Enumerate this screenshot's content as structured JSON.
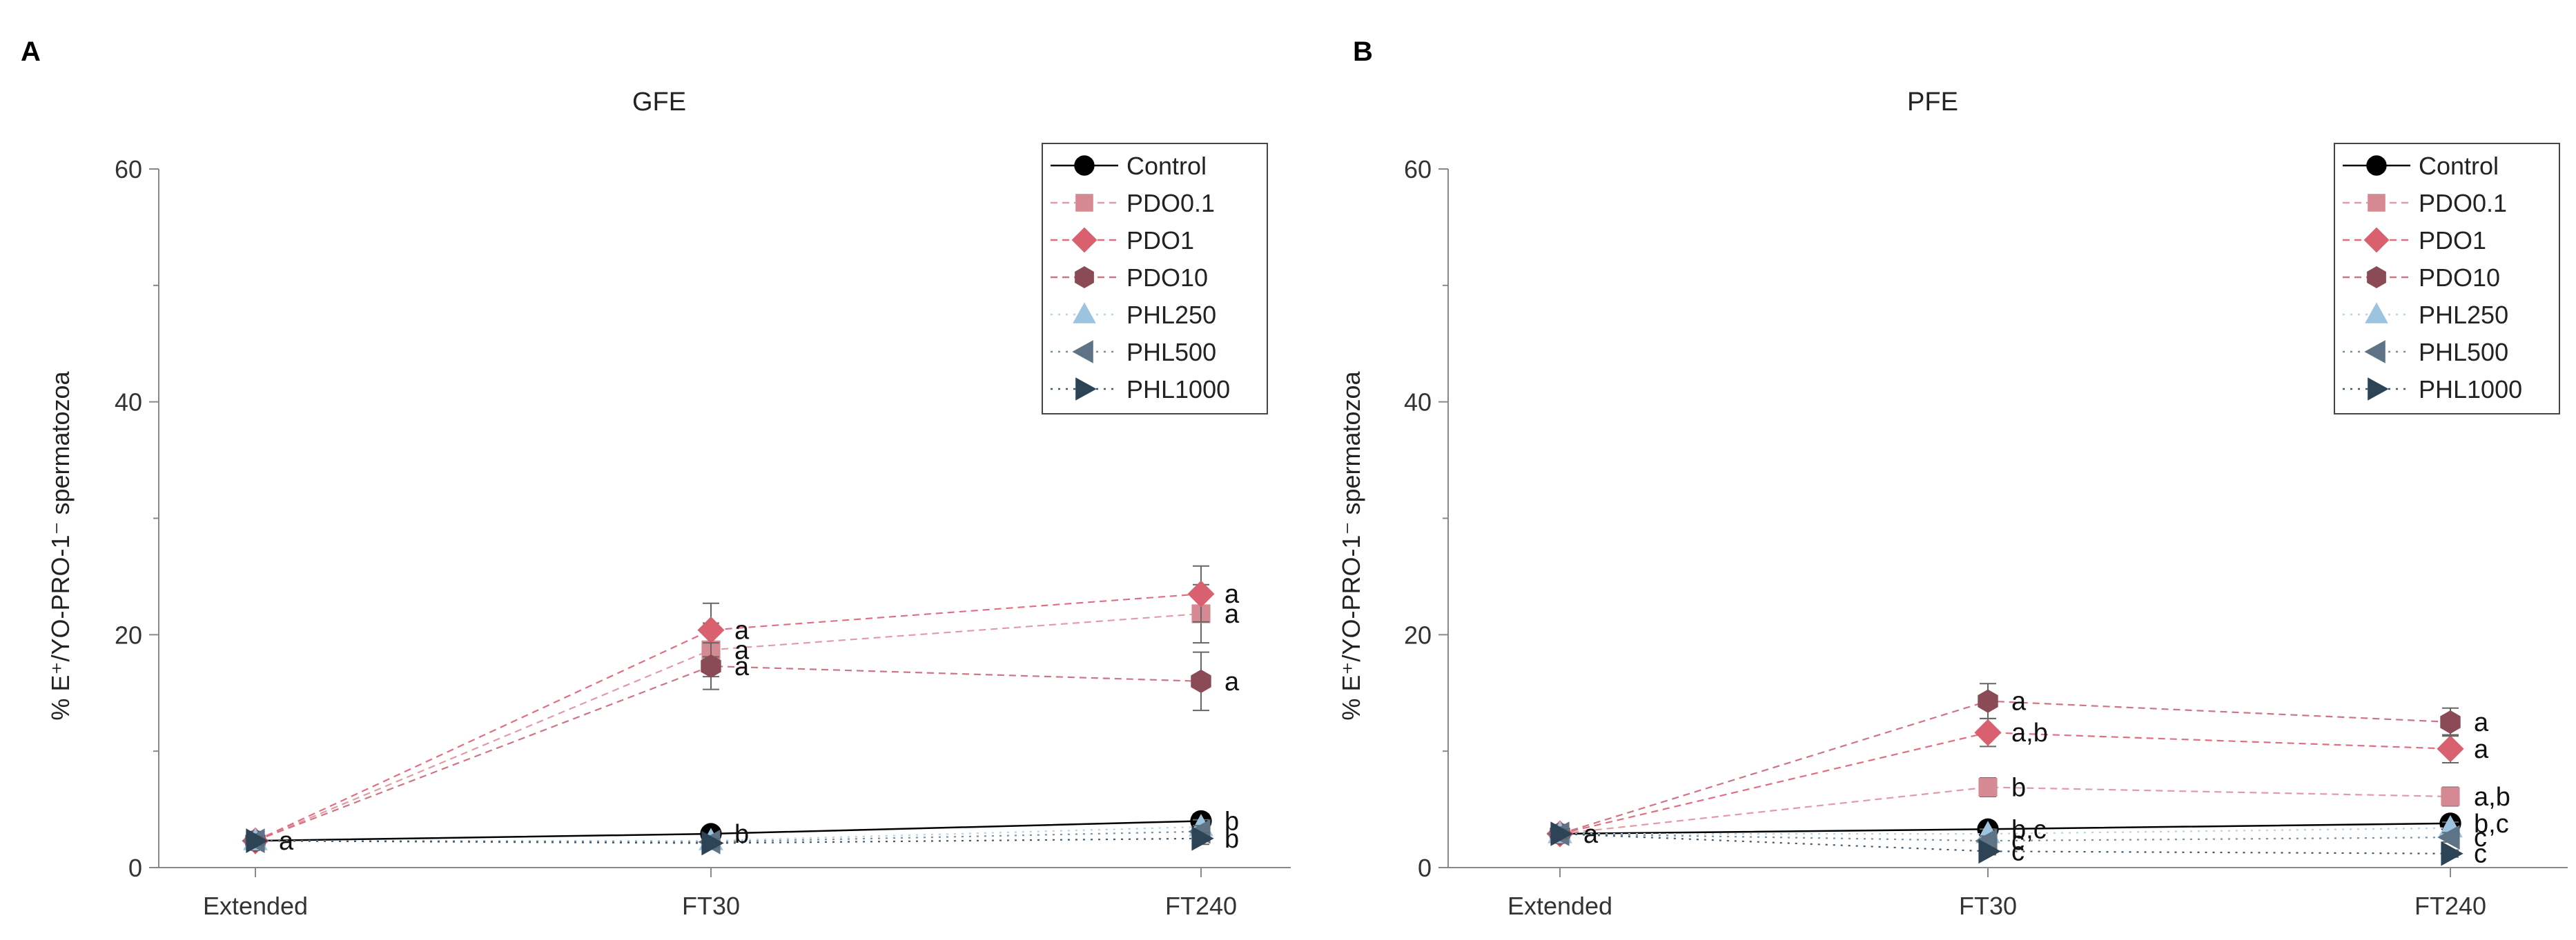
{
  "chart_data": [
    {
      "type": "line",
      "panel_label": "A",
      "title": "GFE",
      "xlabel": "",
      "ylabel": "% E⁺/YO-PRO-1⁻ spermatozoa",
      "categories": [
        "Extended",
        "FT30",
        "FT240"
      ],
      "ylim": [
        0,
        60
      ],
      "yticks": [
        "0",
        "20",
        "40",
        "60"
      ],
      "grid": false,
      "legend": "top-right",
      "series": [
        {
          "name": "Control",
          "values": [
            2.3,
            2.9,
            4.0
          ],
          "errors": [
            0.4,
            0.5,
            0.6
          ],
          "marker": "circle",
          "color": "#000000",
          "line_color": "#000000",
          "dash": "solid",
          "labels": [
            "",
            "b",
            "b"
          ]
        },
        {
          "name": "PDO0.1",
          "values": [
            2.3,
            18.7,
            21.8
          ],
          "errors": [
            0.4,
            2.3,
            2.5
          ],
          "marker": "square",
          "color": "#d58a93",
          "line_color": "#e29aa5",
          "dash": "dash",
          "labels": [
            "",
            "a",
            "a"
          ]
        },
        {
          "name": "PDO1",
          "values": [
            2.3,
            20.4,
            23.5
          ],
          "errors": [
            0.4,
            2.3,
            2.4
          ],
          "marker": "diamond",
          "color": "#d9616f",
          "line_color": "#e36d80",
          "dash": "dash",
          "labels": [
            "",
            "a",
            "a"
          ]
        },
        {
          "name": "PDO10",
          "values": [
            2.3,
            17.3,
            16.0
          ],
          "errors": [
            0.4,
            2.0,
            2.5
          ],
          "marker": "hexagon",
          "color": "#8a4a56",
          "line_color": "#cf7481",
          "dash": "dash",
          "labels": [
            "a",
            "a",
            "a"
          ]
        },
        {
          "name": "PHL250",
          "values": [
            2.3,
            2.3,
            3.5
          ],
          "errors": [
            0.4,
            0.5,
            0.6
          ],
          "marker": "triangle-up",
          "color": "#9dc4df",
          "line_color": "#b7d4e8",
          "dash": "dot",
          "labels": [
            "",
            "",
            ""
          ]
        },
        {
          "name": "PHL500",
          "values": [
            2.3,
            2.2,
            3.1
          ],
          "errors": [
            0.4,
            0.5,
            0.5
          ],
          "marker": "triangle-left",
          "color": "#5e7386",
          "line_color": "#7c8fa0",
          "dash": "dot",
          "labels": [
            "",
            "",
            ""
          ]
        },
        {
          "name": "PHL1000",
          "values": [
            2.3,
            2.1,
            2.5
          ],
          "errors": [
            0.4,
            0.4,
            0.5
          ],
          "marker": "triangle-right",
          "color": "#2d4356",
          "line_color": "#3f5a70",
          "dash": "dot",
          "labels": [
            "",
            "",
            "b"
          ]
        }
      ]
    },
    {
      "type": "line",
      "panel_label": "B",
      "title": "PFE",
      "xlabel": "",
      "ylabel": "% E⁺/YO-PRO-1⁻ spermatozoa",
      "categories": [
        "Extended",
        "FT30",
        "FT240"
      ],
      "ylim": [
        0,
        60
      ],
      "yticks": [
        "0",
        "20",
        "40",
        "60"
      ],
      "grid": false,
      "legend": "top-right",
      "series": [
        {
          "name": "Control",
          "values": [
            2.9,
            3.3,
            3.8
          ],
          "errors": [
            0.4,
            0.5,
            0.5
          ],
          "marker": "circle",
          "color": "#000000",
          "line_color": "#000000",
          "dash": "solid",
          "labels": [
            "",
            "b,c",
            "b,c"
          ]
        },
        {
          "name": "PDO0.1",
          "values": [
            2.9,
            6.9,
            6.1
          ],
          "errors": [
            0.4,
            0.8,
            0.8
          ],
          "marker": "square",
          "color": "#d58a93",
          "line_color": "#e29aa5",
          "dash": "dash",
          "labels": [
            "",
            "b",
            "a,b"
          ]
        },
        {
          "name": "PDO1",
          "values": [
            2.9,
            11.6,
            10.2
          ],
          "errors": [
            0.4,
            1.2,
            1.2
          ],
          "marker": "diamond",
          "color": "#d9616f",
          "line_color": "#e36d80",
          "dash": "dash",
          "labels": [
            "",
            "a,b",
            "a"
          ]
        },
        {
          "name": "PDO10",
          "values": [
            2.9,
            14.3,
            12.5
          ],
          "errors": [
            0.4,
            1.5,
            1.2
          ],
          "marker": "hexagon",
          "color": "#8a4a56",
          "line_color": "#cf7481",
          "dash": "dash",
          "labels": [
            "a",
            "a",
            "a"
          ]
        },
        {
          "name": "PHL250",
          "values": [
            2.9,
            2.9,
            3.4
          ],
          "errors": [
            0.4,
            0.4,
            0.5
          ],
          "marker": "triangle-up",
          "color": "#9dc4df",
          "line_color": "#b7d4e8",
          "dash": "dot",
          "labels": [
            "",
            "",
            ""
          ]
        },
        {
          "name": "PHL500",
          "values": [
            2.9,
            2.3,
            2.6
          ],
          "errors": [
            0.4,
            0.4,
            0.4
          ],
          "marker": "triangle-left",
          "color": "#5e7386",
          "line_color": "#7c8fa0",
          "dash": "dot",
          "labels": [
            "",
            "c",
            "c"
          ]
        },
        {
          "name": "PHL1000",
          "values": [
            2.9,
            1.4,
            1.2
          ],
          "errors": [
            0.4,
            0.3,
            0.3
          ],
          "marker": "triangle-right",
          "color": "#2d4356",
          "line_color": "#3f5a70",
          "dash": "dot",
          "labels": [
            "",
            "c",
            "c"
          ]
        }
      ]
    }
  ]
}
